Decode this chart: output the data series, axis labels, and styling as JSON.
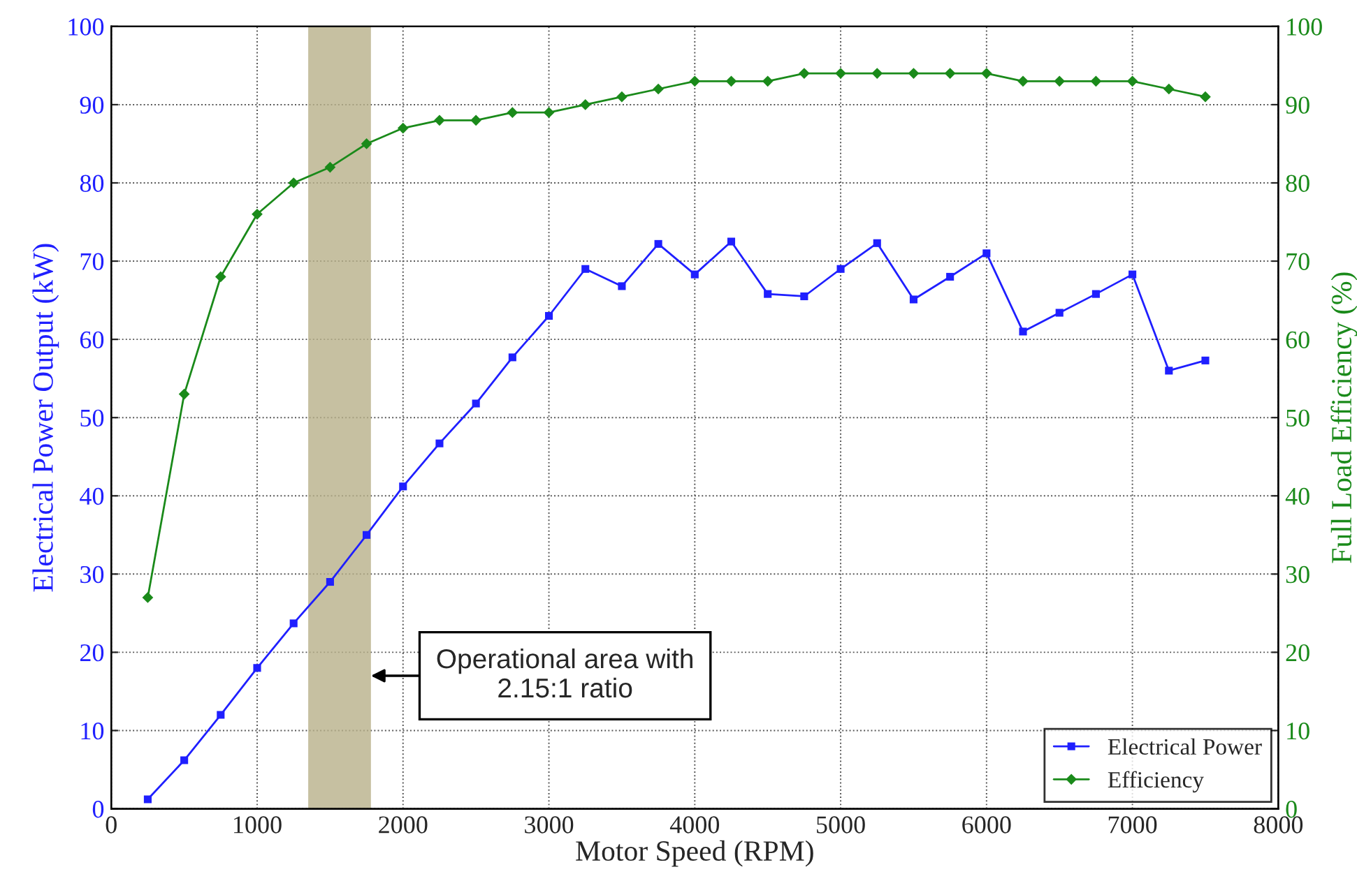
{
  "chart_data": {
    "type": "line",
    "xlabel": "Motor Speed (RPM)",
    "ylabel": "Electrical Power Output (kW)",
    "y2label": "Full Load Efficiency (%)",
    "x": [
      250,
      500,
      750,
      1000,
      1250,
      1500,
      1750,
      2000,
      2250,
      2500,
      2750,
      3000,
      3250,
      3500,
      3750,
      4000,
      4250,
      4500,
      4750,
      5000,
      5250,
      5500,
      5750,
      6000,
      6250,
      6500,
      6750,
      7000,
      7250,
      7500
    ],
    "series": [
      {
        "name": "Electrical Power",
        "color": "#1f1fff",
        "marker": "square",
        "values": [
          1.2,
          6.2,
          12,
          18,
          23.7,
          29,
          35,
          41.2,
          46.7,
          51.8,
          57.7,
          63,
          69,
          66.8,
          72.2,
          68.3,
          72.5,
          65.8,
          65.5,
          69,
          72.3,
          65.1,
          68,
          71,
          61,
          63.4,
          65.8,
          68.3,
          56,
          57.3
        ]
      },
      {
        "name": "Efficiency",
        "color": "#1a8a1a",
        "marker": "diamond",
        "axis": "y2",
        "values": [
          27,
          53,
          68,
          76,
          80,
          82,
          85,
          87,
          88,
          88,
          89,
          89,
          90,
          91,
          92,
          93,
          93,
          93,
          94,
          94,
          94,
          94,
          94,
          94,
          93,
          93,
          93,
          93,
          92,
          91
        ]
      }
    ],
    "xlim": [
      0,
      8000
    ],
    "xticks": [
      0,
      1000,
      2000,
      3000,
      4000,
      5000,
      6000,
      7000,
      8000
    ],
    "ylim": [
      0,
      100
    ],
    "yticks": [
      0,
      10,
      20,
      30,
      40,
      50,
      60,
      70,
      80,
      90,
      100
    ],
    "y2lim": [
      0,
      100
    ],
    "y2ticks": [
      0,
      10,
      20,
      30,
      40,
      50,
      60,
      70,
      80,
      90,
      100
    ],
    "bands": [
      {
        "axis": "x",
        "from": 1350,
        "to": 1780,
        "color": "#b8b08a"
      }
    ],
    "annotations": [
      {
        "text": "Operational area with\n2.15:1 ratio",
        "x": 1780,
        "y": 17
      }
    ],
    "grid": true,
    "legend": "bottom right",
    "line_style": "solid"
  }
}
